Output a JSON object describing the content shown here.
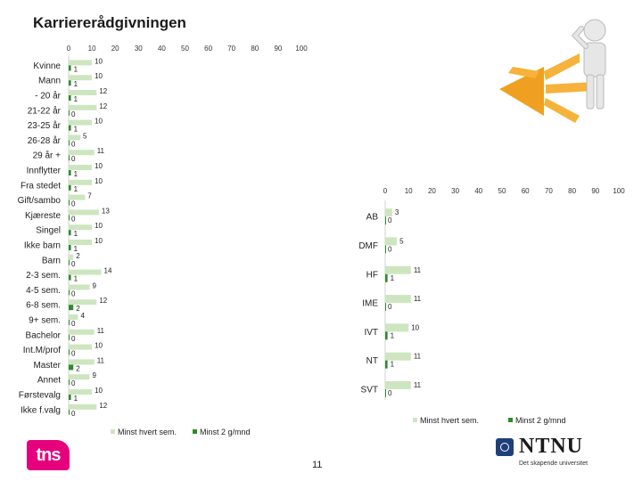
{
  "title": "Karriererådgivningen",
  "page_number": "11",
  "logos": {
    "tns": "tns",
    "ntnu": "NTNU",
    "ntnu_sub": "Det skapende universitet"
  },
  "colors": {
    "minst_hvert_sem": "#cde6c0",
    "minst_2_g_mnd": "#2e8b2e"
  },
  "chart_data": [
    {
      "type": "bar",
      "orientation": "horizontal",
      "stacked": false,
      "xlim": [
        0,
        100
      ],
      "xticks": [
        0,
        10,
        20,
        30,
        40,
        50,
        60,
        70,
        80,
        90,
        100
      ],
      "legend": [
        "Minst hvert sem.",
        "Minst 2 g/mnd"
      ],
      "legend_position": "bottom",
      "categories": [
        "Kvinne",
        "Mann",
        "- 20 år",
        "21-22 år",
        "23-25 år",
        "26-28 år",
        "29 år +",
        "Innflytter",
        "Fra stedet",
        "Gift/sambo",
        "Kjæreste",
        "Singel",
        "Ikke barn",
        "Barn",
        "2-3 sem.",
        "4-5 sem.",
        "6-8 sem.",
        "9+ sem.",
        "Bachelor",
        "Int.M/prof",
        "Master",
        "Annet",
        "Førstevalg",
        "Ikke f.valg"
      ],
      "series": [
        {
          "name": "Minst hvert sem.",
          "values": [
            10,
            10,
            12,
            12,
            10,
            5,
            11,
            10,
            10,
            7,
            13,
            10,
            10,
            2,
            14,
            9,
            12,
            4,
            11,
            10,
            11,
            9,
            10,
            12
          ]
        },
        {
          "name": "Minst 2 g/mnd",
          "values": [
            1,
            1,
            1,
            0,
            1,
            0,
            0,
            1,
            1,
            0,
            0,
            1,
            1,
            0,
            1,
            0,
            2,
            0,
            0,
            0,
            2,
            0,
            1,
            0
          ]
        }
      ]
    },
    {
      "type": "bar",
      "orientation": "horizontal",
      "stacked": false,
      "xlim": [
        0,
        100
      ],
      "xticks": [
        0,
        10,
        20,
        30,
        40,
        50,
        60,
        70,
        80,
        90,
        100
      ],
      "legend": [
        "Minst hvert sem.",
        "Minst 2 g/mnd"
      ],
      "legend_position": "bottom",
      "categories": [
        "AB",
        "DMF",
        "HF",
        "IME",
        "IVT",
        "NT",
        "SVT"
      ],
      "series": [
        {
          "name": "Minst hvert sem.",
          "values": [
            3,
            5,
            11,
            11,
            10,
            11,
            11
          ]
        },
        {
          "name": "Minst 2 g/mnd",
          "values": [
            0,
            0,
            1,
            0,
            1,
            1,
            0
          ]
        }
      ]
    }
  ]
}
